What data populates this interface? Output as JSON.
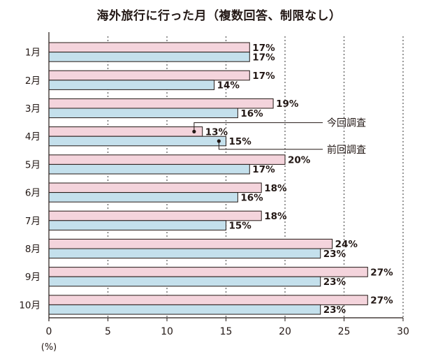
{
  "chart_data": {
    "type": "bar",
    "orientation": "horizontal",
    "title": "海外旅行に行った月（複数回答、制限なし）",
    "categories": [
      "1月",
      "2月",
      "3月",
      "4月",
      "5月",
      "6月",
      "7月",
      "8月",
      "9月",
      "10月"
    ],
    "series": [
      {
        "name": "今回調査",
        "color": "#f4d4dc",
        "values": [
          17,
          17,
          19,
          13,
          20,
          18,
          18,
          24,
          27,
          27
        ],
        "labels": [
          "17%",
          "17%",
          "19%",
          "13%",
          "20%",
          "18%",
          "18%",
          "24%",
          "27%",
          "27%"
        ]
      },
      {
        "name": "前回調査",
        "color": "#c4e0ec",
        "values": [
          17,
          14,
          16,
          15,
          17,
          16,
          15,
          23,
          23,
          23
        ],
        "labels": [
          "17%",
          "14%",
          "16%",
          "15%",
          "17%",
          "16%",
          "15%",
          "23%",
          "23%",
          "23%"
        ]
      }
    ],
    "x_ticks": [
      "0",
      "5",
      "10",
      "15",
      "20",
      "25",
      "30"
    ],
    "x_unit": "(%)",
    "xlim": [
      0,
      30
    ],
    "grid": "vertical dotted at 5, 10, 15, 20, 25, 30",
    "annotations": [
      "今回調査",
      "前回調査"
    ]
  }
}
